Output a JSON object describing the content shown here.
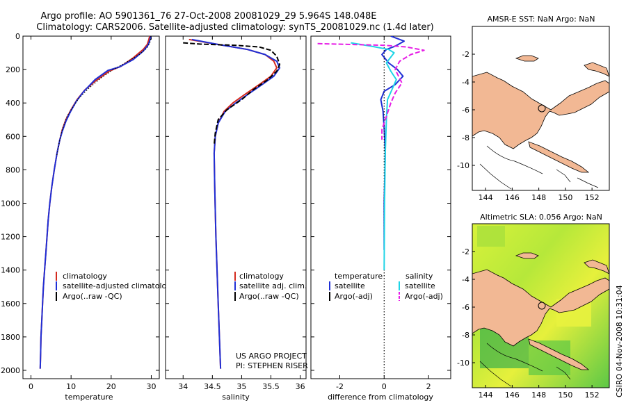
{
  "figure": {
    "title_line1": "Argo profile: AO 5901361_76 27-Oct-2008 20081029_29 5.964S 148.048E",
    "title_line2": "Climatology: CARS2006. Satellite-adjusted climatology: synTS_20081029.nc (1.4d later)",
    "side_stamp": "CSIRO 04-Nov-2008 10:31:04",
    "project_line1": "US ARGO PROJECT",
    "project_line2": "PI: STEPHEN RISER"
  },
  "colors": {
    "climatology": "#d42a1e",
    "satellite": "#1f2fd6",
    "argo": "#000000",
    "satellite_salinity": "#1ed4e6",
    "argo_adj_salinity": "#e61ee6",
    "land": "#f2b894"
  },
  "chart_data": [
    {
      "type": "line",
      "xlabel": "temperature",
      "xlim": [
        -2,
        32
      ],
      "ylim": [
        0,
        2050
      ],
      "y_reversed": true,
      "xticks": [
        0,
        10,
        20,
        30
      ],
      "yticks": [
        0,
        200,
        400,
        600,
        800,
        1000,
        1200,
        1400,
        1600,
        1800,
        2000
      ],
      "legend": [
        "climatology",
        "satellite-adjusted climatology",
        "Argo(..raw -QC)"
      ],
      "series": [
        {
          "name": "climatology",
          "color": "#d42a1e",
          "style": "solid",
          "points": [
            [
              29.6,
              0
            ],
            [
              29.4,
              20
            ],
            [
              29.0,
              50
            ],
            [
              28.0,
              80
            ],
            [
              25.5,
              130
            ],
            [
              22.5,
              180
            ],
            [
              19.5,
              210
            ],
            [
              16.0,
              270
            ],
            [
              13.5,
              320
            ],
            [
              11.5,
              380
            ],
            [
              10.0,
              440
            ],
            [
              8.7,
              500
            ],
            [
              7.8,
              560
            ],
            [
              7.2,
              620
            ],
            [
              6.5,
              700
            ],
            [
              5.8,
              800
            ],
            [
              5.2,
              900
            ],
            [
              4.7,
              1000
            ],
            [
              4.3,
              1100
            ],
            [
              4.0,
              1200
            ],
            [
              3.7,
              1300
            ],
            [
              3.4,
              1400
            ],
            [
              3.1,
              1500
            ],
            [
              2.9,
              1600
            ],
            [
              2.7,
              1700
            ],
            [
              2.5,
              1800
            ],
            [
              2.4,
              1900
            ],
            [
              2.3,
              1990
            ]
          ]
        },
        {
          "name": "satellite-adjusted climatology",
          "color": "#1f2fd6",
          "style": "solid",
          "points": [
            [
              29.9,
              0
            ],
            [
              29.7,
              20
            ],
            [
              29.3,
              50
            ],
            [
              28.0,
              90
            ],
            [
              25.5,
              140
            ],
            [
              22.0,
              185
            ],
            [
              19.2,
              205
            ],
            [
              16.0,
              260
            ],
            [
              13.2,
              330
            ],
            [
              11.3,
              390
            ],
            [
              9.9,
              450
            ],
            [
              8.7,
              510
            ],
            [
              7.8,
              570
            ],
            [
              7.2,
              620
            ],
            [
              6.5,
              700
            ],
            [
              5.8,
              800
            ],
            [
              5.2,
              900
            ],
            [
              4.7,
              1000
            ],
            [
              4.3,
              1100
            ],
            [
              4.0,
              1200
            ],
            [
              3.7,
              1300
            ],
            [
              3.4,
              1400
            ],
            [
              3.1,
              1500
            ],
            [
              2.9,
              1600
            ],
            [
              2.7,
              1700
            ],
            [
              2.5,
              1800
            ],
            [
              2.4,
              1900
            ],
            [
              2.3,
              1990
            ]
          ]
        },
        {
          "name": "Argo(..raw -QC)",
          "color": "#000000",
          "style": "dotted",
          "points": [
            [
              29.9,
              0
            ],
            [
              29.8,
              30
            ],
            [
              29.0,
              70
            ],
            [
              27.0,
              110
            ],
            [
              23.5,
              160
            ],
            [
              20.5,
              200
            ],
            [
              17.5,
              250
            ],
            [
              14.5,
              310
            ],
            [
              12.0,
              370
            ],
            [
              10.3,
              430
            ],
            [
              9.0,
              480
            ],
            [
              7.8,
              560
            ],
            [
              7.0,
              640
            ],
            [
              6.4,
              720
            ]
          ]
        }
      ]
    },
    {
      "type": "line",
      "xlabel": "salinity",
      "xlim": [
        33.7,
        36.1
      ],
      "ylim": [
        0,
        2050
      ],
      "y_reversed": true,
      "xticks": [
        34,
        34.5,
        35,
        35.5,
        36
      ],
      "legend": [
        "climatology",
        "satellite adj. clim.",
        "Argo(..raw -QC)"
      ],
      "series": [
        {
          "name": "climatology",
          "color": "#d42a1e",
          "style": "solid",
          "points": [
            [
              34.1,
              20
            ],
            [
              34.6,
              50
            ],
            [
              35.1,
              80
            ],
            [
              35.4,
              110
            ],
            [
              35.55,
              150
            ],
            [
              35.6,
              190
            ],
            [
              35.5,
              240
            ],
            [
              35.3,
              290
            ],
            [
              35.05,
              350
            ],
            [
              34.85,
              400
            ],
            [
              34.7,
              450
            ],
            [
              34.6,
              520
            ],
            [
              34.55,
              600
            ],
            [
              34.53,
              700
            ],
            [
              34.54,
              900
            ],
            [
              34.56,
              1200
            ],
            [
              34.6,
              1600
            ],
            [
              34.64,
              1990
            ]
          ]
        },
        {
          "name": "satellite adj. clim.",
          "color": "#1f2fd6",
          "style": "solid",
          "points": [
            [
              34.15,
              20
            ],
            [
              34.6,
              50
            ],
            [
              35.1,
              80
            ],
            [
              35.4,
              110
            ],
            [
              35.6,
              150
            ],
            [
              35.65,
              190
            ],
            [
              35.55,
              240
            ],
            [
              35.35,
              290
            ],
            [
              35.1,
              350
            ],
            [
              34.9,
              400
            ],
            [
              34.72,
              450
            ],
            [
              34.6,
              520
            ],
            [
              34.55,
              600
            ],
            [
              34.53,
              700
            ],
            [
              34.54,
              900
            ],
            [
              34.56,
              1200
            ],
            [
              34.6,
              1600
            ],
            [
              34.64,
              1990
            ]
          ]
        },
        {
          "name": "Argo(..raw -QC)",
          "color": "#000000",
          "style": "dashed",
          "points": [
            [
              34.0,
              40
            ],
            [
              34.3,
              48
            ],
            [
              34.9,
              55
            ],
            [
              35.3,
              65
            ],
            [
              35.5,
              85
            ],
            [
              35.6,
              120
            ],
            [
              35.65,
              170
            ],
            [
              35.6,
              210
            ],
            [
              35.45,
              260
            ],
            [
              35.2,
              320
            ],
            [
              35.0,
              380
            ],
            [
              34.75,
              440
            ],
            [
              34.6,
              500
            ],
            [
              34.55,
              580
            ],
            [
              34.53,
              650
            ]
          ]
        }
      ]
    },
    {
      "type": "line",
      "xlabel": "difference from climatology",
      "xlim": [
        -3.3,
        3.0
      ],
      "ylim": [
        0,
        2050
      ],
      "y_reversed": true,
      "xticks": [
        -2,
        0,
        2
      ],
      "legend_headers": [
        "temperature",
        "salinity"
      ],
      "legend": [
        "satellite",
        "Argo(-adj)",
        "satellite",
        "Argo(-adj)"
      ],
      "series": [
        {
          "name": "satellite",
          "quantity": "temperature",
          "color": "#1f2fd6",
          "style": "solid",
          "points": [
            [
              0.3,
              0
            ],
            [
              0.9,
              30
            ],
            [
              0.5,
              60
            ],
            [
              0.1,
              80
            ],
            [
              -0.1,
              110
            ],
            [
              0.2,
              160
            ],
            [
              0.6,
              200
            ],
            [
              0.85,
              240
            ],
            [
              0.5,
              290
            ],
            [
              0.0,
              330
            ],
            [
              -0.15,
              380
            ],
            [
              -0.05,
              450
            ],
            [
              0.0,
              550
            ],
            [
              0.05,
              700
            ],
            [
              0.0,
              1000
            ],
            [
              0.0,
              1280
            ]
          ]
        },
        {
          "name": "Argo(-adj)",
          "quantity": "temperature",
          "color": "#000000",
          "style": "dotted",
          "points": [
            [
              0.0,
              0
            ],
            [
              0.0,
              2050
            ]
          ]
        },
        {
          "name": "satellite",
          "quantity": "salinity",
          "color": "#1ed4e6",
          "style": "solid",
          "points": [
            [
              -1.5,
              40
            ],
            [
              -0.6,
              60
            ],
            [
              0.2,
              80
            ],
            [
              0.45,
              100
            ],
            [
              0.1,
              160
            ],
            [
              0.3,
              210
            ],
            [
              0.55,
              260
            ],
            [
              0.35,
              320
            ],
            [
              0.15,
              380
            ],
            [
              0.1,
              500
            ],
            [
              0.05,
              700
            ],
            [
              0.02,
              1000
            ],
            [
              0.0,
              1400
            ]
          ]
        },
        {
          "name": "Argo(-adj)",
          "quantity": "salinity",
          "color": "#e61ee6",
          "style": "dashed",
          "points": [
            [
              -3.0,
              45
            ],
            [
              -1.5,
              50
            ],
            [
              0.0,
              55
            ],
            [
              1.0,
              65
            ],
            [
              1.8,
              85
            ],
            [
              1.2,
              110
            ],
            [
              0.7,
              150
            ],
            [
              0.5,
              200
            ],
            [
              0.8,
              280
            ],
            [
              0.5,
              340
            ],
            [
              0.3,
              400
            ],
            [
              0.1,
              480
            ],
            [
              -0.1,
              560
            ],
            [
              -0.1,
              620
            ]
          ]
        }
      ]
    },
    {
      "type": "map",
      "title": "AMSR-E SST: NaN Argo: NaN",
      "xlim": [
        143,
        153.3
      ],
      "ylim": [
        -11.8,
        0
      ],
      "xticks": [
        144,
        146,
        148,
        150,
        152
      ],
      "yticks": [
        -2,
        -4,
        -6,
        -8,
        -10
      ],
      "marker": {
        "lon": 148.048,
        "lat": -5.964
      }
    },
    {
      "type": "map",
      "title": "Altimetric SLA: 0.056 Argo: NaN",
      "xlim": [
        143,
        153.3
      ],
      "ylim": [
        -11.8,
        0
      ],
      "xticks": [
        144,
        146,
        148,
        150,
        152
      ],
      "yticks": [
        -2,
        -4,
        -6,
        -8,
        -10
      ],
      "marker": {
        "lon": 148.048,
        "lat": -5.964
      }
    }
  ]
}
